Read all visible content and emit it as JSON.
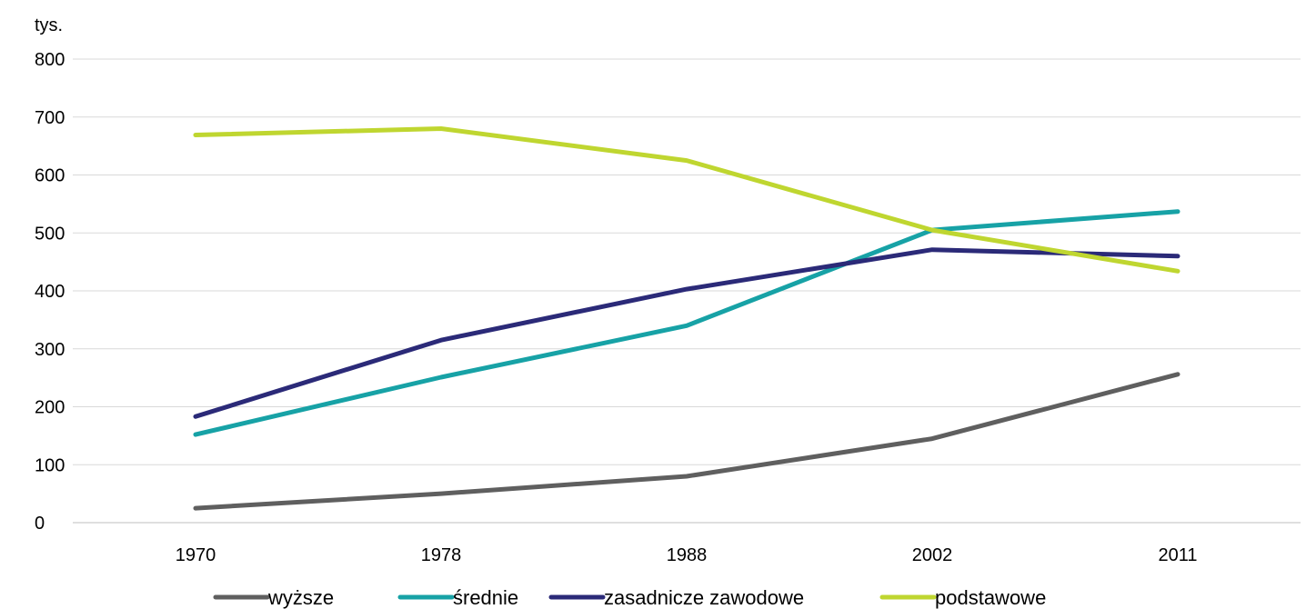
{
  "chart_data": {
    "type": "line",
    "unit_label": "tys.",
    "categories": [
      "1970",
      "1978",
      "1988",
      "2002",
      "2011"
    ],
    "ylim": [
      0,
      800
    ],
    "yticks": [
      0,
      100,
      200,
      300,
      400,
      500,
      600,
      700,
      800
    ],
    "grid": true,
    "legend_position": "bottom",
    "series": [
      {
        "name": "wyższe",
        "color": "#5f5f5f",
        "values": [
          25,
          50,
          80,
          145,
          256
        ]
      },
      {
        "name": "średnie",
        "color": "#17a2a6",
        "values": [
          152,
          251,
          340,
          505,
          537
        ]
      },
      {
        "name": "zasadnicze zawodowe",
        "color": "#2b2a78",
        "values": [
          183,
          315,
          403,
          471,
          460
        ]
      },
      {
        "name": "podstawowe",
        "color": "#bfd630",
        "values": [
          669,
          680,
          625,
          505,
          434
        ]
      }
    ]
  }
}
